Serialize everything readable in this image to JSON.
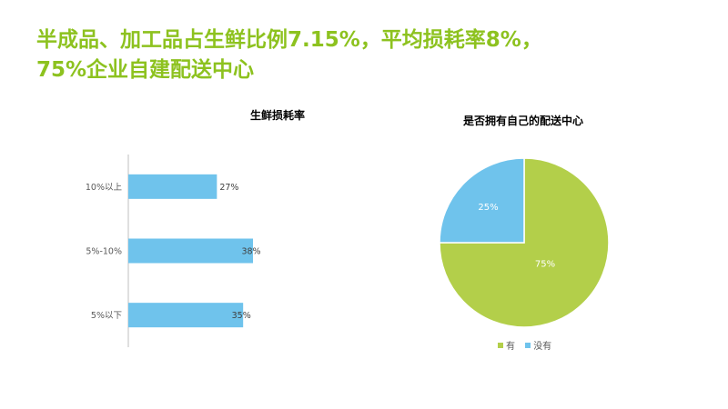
{
  "headline": {
    "line1": "半成品、加工品占生鲜比例7.15%，平均损耗率8%，",
    "line2": "75%企业自建配送中心"
  },
  "colors": {
    "accent": "#8dc21f",
    "bar": "#6fc3ec",
    "pie_yes": "#b3cf4a",
    "pie_no": "#6fc3ec"
  },
  "chart_data": [
    {
      "type": "bar",
      "orientation": "horizontal",
      "title": "生鲜损耗率",
      "categories": [
        "10%以上",
        "5%-10%",
        "5%以下"
      ],
      "values": [
        27,
        38,
        35
      ],
      "value_labels": [
        "27%",
        "38%",
        "35%"
      ],
      "xlim": [
        0,
        38
      ],
      "grid": false,
      "legend": "none"
    },
    {
      "type": "pie",
      "title": "是否拥有自己的配送中心",
      "labels": [
        "有",
        "没有"
      ],
      "values": [
        75,
        25
      ],
      "value_labels": [
        "75%",
        "25%"
      ],
      "colors": [
        "#b3cf4a",
        "#6fc3ec"
      ],
      "legend": "bottom"
    }
  ]
}
